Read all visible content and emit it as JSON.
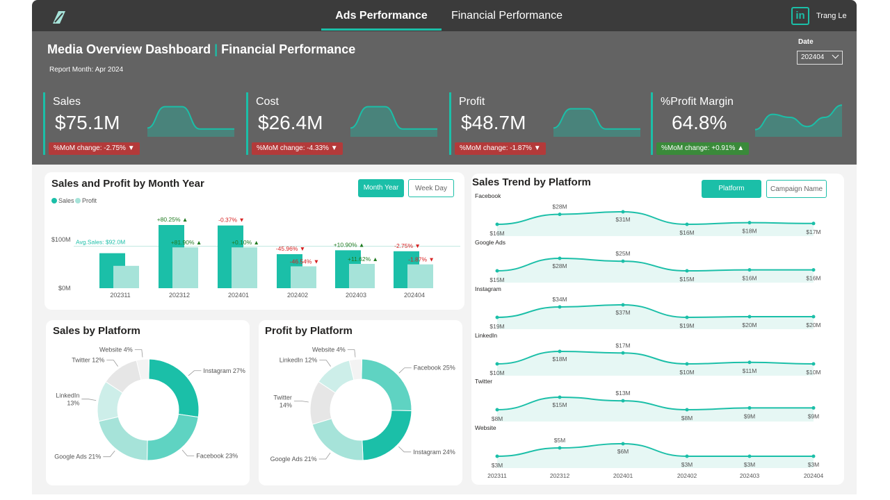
{
  "nav": {
    "tabs": [
      {
        "label": "Ads Performance",
        "active": true
      },
      {
        "label": "Financial Performance",
        "active": false
      }
    ],
    "user_name": "Trang Le",
    "linkedin_glyph": "in",
    "logo_icon": "leaf-logo-icon"
  },
  "header": {
    "title_part1": "Media Overview Dashboard",
    "title_sep": "|",
    "title_part2": "Financial Performance",
    "report_month": "Report Month: Apr 2024",
    "date_label": "Date",
    "date_value": "202404"
  },
  "colors": {
    "accent": "#1bbfa8",
    "accent_light": "#a6e3d9",
    "negative": "#b33a3a",
    "positive": "#3a8a3a",
    "header_bg": "#636363",
    "topbar_bg": "#3b3b3b"
  },
  "kpis": [
    {
      "label": "Sales",
      "value": "$75.1M",
      "change": "%MoM change: -2.75% ▼",
      "trend": "down",
      "spark": [
        0.15,
        0.85,
        0.85,
        0.12,
        0.12,
        0.12
      ]
    },
    {
      "label": "Cost",
      "value": "$26.4M",
      "change": "%MoM change: -4.33% ▼",
      "trend": "down",
      "spark": [
        0.15,
        0.85,
        0.85,
        0.12,
        0.12,
        0.12
      ]
    },
    {
      "label": "Profit",
      "value": "$48.7M",
      "change": "%MoM change: -1.87% ▼",
      "trend": "down",
      "spark": [
        0.15,
        0.78,
        0.78,
        0.12,
        0.12,
        0.12
      ]
    },
    {
      "label": "%Profit Margin",
      "value": "64.8%",
      "change": "%MoM change: +0.91% ▲",
      "trend": "up",
      "spark": [
        0.1,
        0.6,
        0.5,
        0.2,
        0.5,
        0.9
      ]
    }
  ],
  "month_chart": {
    "title": "Sales and Profit by Month Year",
    "legend": [
      "Sales",
      "Profit"
    ],
    "buttons": [
      {
        "label": "Month Year",
        "active": true
      },
      {
        "label": "Week Day",
        "active": false
      }
    ],
    "avg_label": "Avg.Sales: $92.0M",
    "y_ticks": [
      "$100M",
      "$0M"
    ]
  },
  "chart_data": [
    {
      "type": "bar",
      "title": "Sales and Profit by Month Year",
      "categories": [
        "202311",
        "202312",
        "202401",
        "202402",
        "202403",
        "202404"
      ],
      "series": [
        {
          "name": "Sales",
          "values": [
            72,
            130,
            129,
            70,
            78,
            76
          ]
        },
        {
          "name": "Profit",
          "values": [
            46,
            84,
            84,
            45,
            50,
            49
          ]
        }
      ],
      "sales_labels": [
        "",
        "+80.25% ▲",
        "-0.37% ▼",
        "-45.96% ▼",
        "+10.90% ▲",
        "-2.75% ▼"
      ],
      "profit_labels": [
        "",
        "+81.90% ▲",
        "+0.10% ▲",
        "-46.54% ▼",
        "+11.62% ▲",
        "-1.87% ▼"
      ],
      "sales_dirs": [
        "",
        "up",
        "down",
        "down",
        "up",
        "down"
      ],
      "profit_dirs": [
        "",
        "up",
        "up",
        "down",
        "up",
        "down"
      ],
      "avg": 92,
      "ylim": [
        0,
        130
      ]
    },
    {
      "type": "pie",
      "title": "Sales by Platform",
      "slices": [
        {
          "label": "Instagram 27%",
          "value": 27,
          "color": "#1bbfa8"
        },
        {
          "label": "Facebook 23%",
          "value": 23,
          "color": "#5fd3c2"
        },
        {
          "label": "Google Ads 21%",
          "value": 21,
          "color": "#a6e3d9"
        },
        {
          "label": "LinkedIn\n13%",
          "value": 13,
          "color": "#cdeee9"
        },
        {
          "label": "Twitter 12%",
          "value": 12,
          "color": "#e6e6e6"
        },
        {
          "label": "Website 4%",
          "value": 4,
          "color": "#f3f3f3"
        }
      ]
    },
    {
      "type": "pie",
      "title": "Profit by Platform",
      "slices": [
        {
          "label": "Facebook 25%",
          "value": 25,
          "color": "#5fd3c2"
        },
        {
          "label": "Instagram 24%",
          "value": 24,
          "color": "#1bbfa8"
        },
        {
          "label": "Google Ads 21%",
          "value": 21,
          "color": "#a6e3d9"
        },
        {
          "label": "Twitter\n14%",
          "value": 14,
          "color": "#e6e6e6"
        },
        {
          "label": "LinkedIn 12%",
          "value": 12,
          "color": "#cdeee9"
        },
        {
          "label": "Website 4%",
          "value": 4,
          "color": "#f3f3f3"
        }
      ]
    },
    {
      "type": "line",
      "title": "Sales Trend by Platform",
      "x": [
        "202311",
        "202312",
        "202401",
        "202402",
        "202403",
        "202404"
      ],
      "series": [
        {
          "name": "Facebook",
          "values": [
            16,
            28,
            31,
            16,
            18,
            17
          ],
          "labels": [
            "$16M",
            "$28M",
            "$31M",
            "$16M",
            "$18M",
            "$17M"
          ]
        },
        {
          "name": "Google Ads",
          "values": [
            15,
            28,
            25,
            15,
            16,
            16
          ],
          "labels": [
            "$15M",
            "$28M",
            "$25M",
            "$15M",
            "$16M",
            "$16M"
          ]
        },
        {
          "name": "Instagram",
          "values": [
            19,
            34,
            37,
            19,
            20,
            20
          ],
          "labels": [
            "$19M",
            "$34M",
            "$37M",
            "$19M",
            "$20M",
            "$20M"
          ]
        },
        {
          "name": "LinkedIn",
          "values": [
            10,
            18,
            17,
            10,
            11,
            10
          ],
          "labels": [
            "$10M",
            "$18M",
            "$17M",
            "$10M",
            "$11M",
            "$10M"
          ]
        },
        {
          "name": "Twitter",
          "values": [
            8,
            15,
            13,
            8,
            9,
            9
          ],
          "labels": [
            "$8M",
            "$15M",
            "$13M",
            "$8M",
            "$9M",
            "$9M"
          ]
        },
        {
          "name": "Website",
          "values": [
            3,
            5,
            6,
            3,
            3,
            3
          ],
          "labels": [
            "$3M",
            "$5M",
            "$6M",
            "$3M",
            "$3M",
            "$3M"
          ]
        }
      ]
    }
  ],
  "trend_chart": {
    "title": "Sales Trend by Platform",
    "buttons": [
      {
        "label": "Platform",
        "active": true
      },
      {
        "label": "Campaign Name",
        "active": false
      }
    ]
  }
}
